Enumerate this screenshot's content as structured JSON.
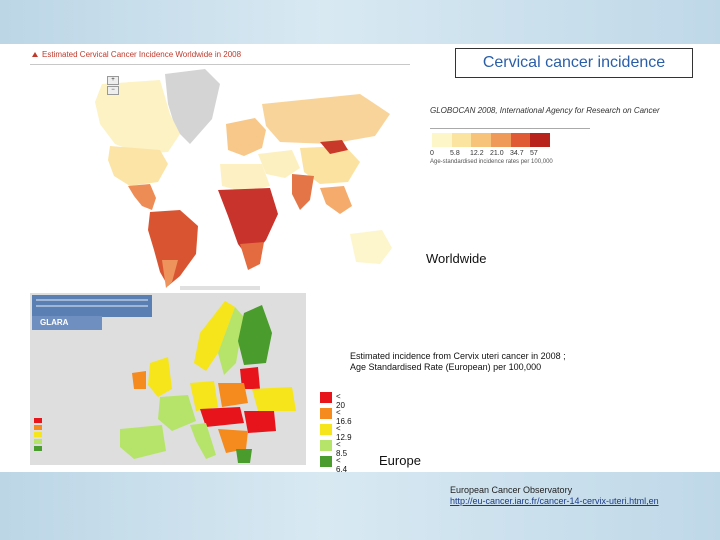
{
  "slide": {
    "title": "Cervical cancer incidence",
    "worldwide_label": "Worldwide",
    "europe_label": "Europe",
    "footer_line1": "European Cancer Observatory",
    "footer_link": "http://eu-cancer.iarc.fr/cancer-14-cervix-uteri.html,en"
  },
  "world_map": {
    "caption": "Estimated Cervical Cancer Incidence Worldwide in 2008",
    "source": "GLOBOCAN 2008, International Agency for Research on Cancer",
    "ticks": [
      "0",
      "5.8",
      "12.2",
      "21.0",
      "34.7",
      "57"
    ],
    "note": "Age-standardised incidence rates per 100,000",
    "gradient_colors": [
      "#fdf6c8",
      "#fbe3a0",
      "#f7c27a",
      "#f09a5a",
      "#df5a35",
      "#b8231c"
    ]
  },
  "europe_map": {
    "logo": "GLARA",
    "description_line1": "Estimated incidence from Cervix uteri cancer in 2008 ;",
    "description_line2": "Age Standardised Rate (European) per 100,000",
    "legend": [
      {
        "label": "< 20",
        "color": "#e8141c"
      },
      {
        "label": "< 16.6",
        "color": "#f58a1f"
      },
      {
        "label": "< 12.9",
        "color": "#f5e51a"
      },
      {
        "label": "< 8.5",
        "color": "#b6e46a"
      },
      {
        "label": "< 6.4",
        "color": "#4a9c2c"
      }
    ]
  }
}
